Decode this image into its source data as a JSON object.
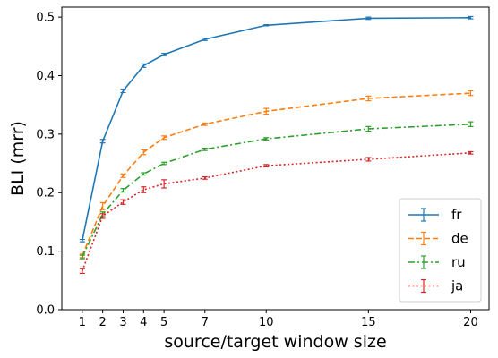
{
  "chart_data": {
    "type": "line",
    "xlabel": "source/target window size",
    "ylabel": "BLI (mrr)",
    "x": [
      1,
      2,
      3,
      4,
      5,
      7,
      10,
      15,
      20
    ],
    "x_ticks": [
      1,
      2,
      3,
      4,
      5,
      7,
      10,
      15,
      20
    ],
    "x_tick_labels": [
      "1",
      "2",
      "3",
      "4",
      "5",
      "7",
      "10",
      "15",
      "20"
    ],
    "xlim": [
      0.0,
      20.9
    ],
    "y_ticks": [
      0.0,
      0.1,
      0.2,
      0.3,
      0.4,
      0.5
    ],
    "y_tick_labels": [
      "0.0",
      "0.1",
      "0.2",
      "0.3",
      "0.4",
      "0.5"
    ],
    "ylim": [
      0.0,
      0.517
    ],
    "grid": false,
    "legend_position": "lower right",
    "series": [
      {
        "name": "fr",
        "color": "#1f77b4",
        "line_style": "solid",
        "x": [
          1,
          2,
          3,
          4,
          5,
          7,
          10,
          15,
          20
        ],
        "values": [
          0.118,
          0.288,
          0.374,
          0.417,
          0.436,
          0.462,
          0.486,
          0.498,
          0.499
        ],
        "error": [
          0.002,
          0.003,
          0.003,
          0.003,
          0.002,
          0.002,
          0.001,
          0.002,
          0.002
        ]
      },
      {
        "name": "de",
        "color": "#ff7f0e",
        "line_style": "dashed",
        "x": [
          1,
          2,
          3,
          4,
          5,
          7,
          10,
          15,
          20
        ],
        "values": [
          0.092,
          0.177,
          0.229,
          0.269,
          0.294,
          0.317,
          0.339,
          0.361,
          0.37
        ],
        "error": [
          0.003,
          0.006,
          0.003,
          0.004,
          0.003,
          0.002,
          0.005,
          0.004,
          0.004
        ]
      },
      {
        "name": "ru",
        "color": "#2ca02c",
        "line_style": "dashdot",
        "x": [
          1,
          2,
          3,
          4,
          5,
          7,
          10,
          15,
          20
        ],
        "values": [
          0.09,
          0.163,
          0.204,
          0.232,
          0.25,
          0.274,
          0.292,
          0.309,
          0.317
        ],
        "error": [
          0.003,
          0.004,
          0.003,
          0.002,
          0.002,
          0.002,
          0.002,
          0.004,
          0.004
        ]
      },
      {
        "name": "ja",
        "color": "#d62728",
        "line_style": "dotted",
        "x": [
          1,
          2,
          3,
          4,
          5,
          7,
          10,
          15,
          20
        ],
        "values": [
          0.066,
          0.16,
          0.184,
          0.205,
          0.215,
          0.225,
          0.246,
          0.257,
          0.268
        ],
        "error": [
          0.004,
          0.004,
          0.004,
          0.005,
          0.007,
          0.002,
          0.002,
          0.003,
          0.002
        ]
      }
    ]
  }
}
